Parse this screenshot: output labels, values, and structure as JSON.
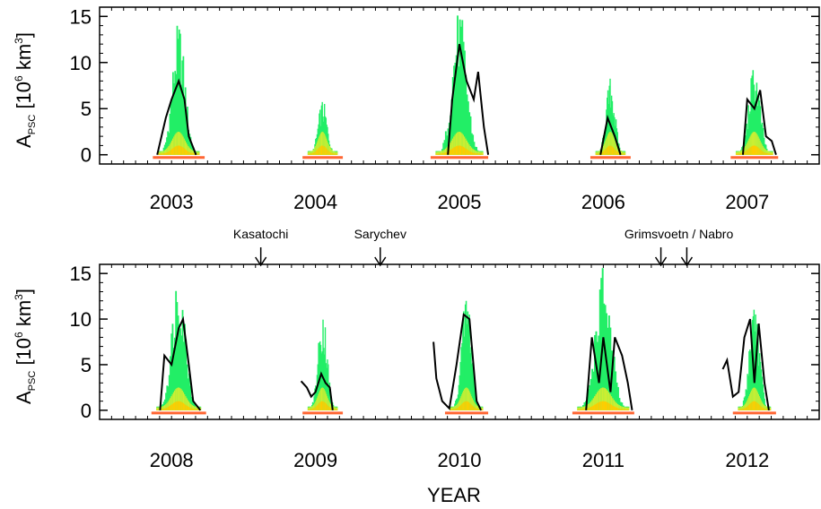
{
  "chart_data": [
    {
      "type": "area",
      "panel": "top",
      "ylabel_main": "A",
      "ylabel_sub": "PSC",
      "ylabel_units_pre": "[10",
      "ylabel_units_exp": "6",
      "ylabel_units_mid": " km",
      "ylabel_units_exp2": "3",
      "ylabel_units_post": "]",
      "ylim": [
        -1,
        16
      ],
      "yticks": [
        "0",
        "5",
        "10",
        "15"
      ],
      "ytick_values": [
        0,
        5,
        10,
        15
      ],
      "xlim": [
        2002.5,
        2007.5
      ],
      "xticks": [
        "2003",
        "2004",
        "2005",
        "2006",
        "2007"
      ],
      "xtick_values": [
        2003.0,
        2004.0,
        2005.0,
        2006.0,
        2007.0
      ],
      "colors": {
        "envelope": "#22ee66",
        "mid": "#ccee33",
        "low": "#ffcc00",
        "base": "#ff6633",
        "line": "#000000"
      },
      "seasons": [
        {
          "center": 2003.05,
          "width": 0.28,
          "envelope_peak": 14.5,
          "line": [
            [
              2002.9,
              0
            ],
            [
              2002.96,
              4
            ],
            [
              2003.0,
              6
            ],
            [
              2003.05,
              8
            ],
            [
              2003.09,
              6
            ],
            [
              2003.12,
              2
            ],
            [
              2003.17,
              0
            ]
          ]
        },
        {
          "center": 2004.05,
          "width": 0.2,
          "envelope_peak": 6.0,
          "line": []
        },
        {
          "center": 2005.0,
          "width": 0.32,
          "envelope_peak": 16.0,
          "line": [
            [
              2004.92,
              0
            ],
            [
              2004.95,
              6
            ],
            [
              2005.0,
              12
            ],
            [
              2005.05,
              8
            ],
            [
              2005.1,
              6
            ],
            [
              2005.13,
              9
            ],
            [
              2005.17,
              3
            ],
            [
              2005.2,
              0
            ]
          ]
        },
        {
          "center": 2006.05,
          "width": 0.2,
          "envelope_peak": 8.5,
          "line": [
            [
              2005.98,
              0
            ],
            [
              2006.03,
              4
            ],
            [
              2006.08,
              2
            ],
            [
              2006.12,
              0
            ]
          ]
        },
        {
          "center": 2007.05,
          "width": 0.25,
          "envelope_peak": 10.0,
          "line": [
            [
              2006.97,
              0
            ],
            [
              2007.0,
              6
            ],
            [
              2007.05,
              5
            ],
            [
              2007.09,
              7
            ],
            [
              2007.13,
              2
            ],
            [
              2007.17,
              1.5
            ],
            [
              2007.2,
              0
            ]
          ]
        }
      ]
    },
    {
      "type": "area",
      "panel": "bottom",
      "ylabel_main": "A",
      "ylabel_sub": "PSC",
      "ylabel_units_pre": "[10",
      "ylabel_units_exp": "6",
      "ylabel_units_mid": " km",
      "ylabel_units_exp2": "3",
      "ylabel_units_post": "]",
      "ylim": [
        -1,
        16
      ],
      "yticks": [
        "0",
        "5",
        "10",
        "15"
      ],
      "ytick_values": [
        0,
        5,
        10,
        15
      ],
      "xlim": [
        2007.5,
        2012.5
      ],
      "xticks": [
        "2008",
        "2009",
        "2010",
        "2011",
        "2012"
      ],
      "xtick_values": [
        2008.0,
        2009.0,
        2010.0,
        2011.0,
        2012.0
      ],
      "xlabel": "YEAR",
      "colors": {
        "envelope": "#22ee66",
        "mid": "#ccee33",
        "low": "#ffcc00",
        "base": "#ff6633",
        "line": "#000000"
      },
      "seasons": [
        {
          "center": 2008.05,
          "width": 0.3,
          "envelope_peak": 16.0,
          "line": [
            [
              2007.92,
              0
            ],
            [
              2007.95,
              6
            ],
            [
              2008.0,
              5
            ],
            [
              2008.05,
              9
            ],
            [
              2008.08,
              10
            ],
            [
              2008.12,
              5
            ],
            [
              2008.15,
              1
            ],
            [
              2008.2,
              0
            ]
          ]
        },
        {
          "center": 2009.05,
          "width": 0.2,
          "envelope_peak": 11.5,
          "line": [
            [
              2008.9,
              3.2
            ],
            [
              2008.94,
              2.5
            ],
            [
              2008.97,
              1.5
            ],
            [
              2009.0,
              2.0
            ],
            [
              2009.04,
              4.0
            ],
            [
              2009.07,
              3.0
            ],
            [
              2009.1,
              2.5
            ],
            [
              2009.12,
              0
            ]
          ]
        },
        {
          "center": 2010.05,
          "width": 0.22,
          "envelope_peak": 13.5,
          "line": [
            [
              2009.82,
              7.5
            ],
            [
              2009.84,
              3.5
            ],
            [
              2009.88,
              1.0
            ],
            [
              2009.93,
              0.2
            ],
            [
              2009.98,
              5
            ],
            [
              2010.03,
              10.5
            ],
            [
              2010.07,
              10.0
            ],
            [
              2010.12,
              1
            ],
            [
              2010.15,
              0
            ]
          ]
        },
        {
          "center": 2011.0,
          "width": 0.35,
          "envelope_peak": 16.0,
          "line": [
            [
              2010.88,
              0
            ],
            [
              2010.92,
              8
            ],
            [
              2010.97,
              3
            ],
            [
              2011.0,
              8
            ],
            [
              2011.05,
              2
            ],
            [
              2011.08,
              8
            ],
            [
              2011.13,
              6
            ],
            [
              2011.17,
              3
            ],
            [
              2011.2,
              0
            ]
          ]
        },
        {
          "center": 2012.05,
          "width": 0.22,
          "envelope_peak": 13.0,
          "line": [
            [
              2011.83,
              4.5
            ],
            [
              2011.86,
              5.5
            ],
            [
              2011.9,
              1.5
            ],
            [
              2011.94,
              2
            ],
            [
              2011.98,
              8
            ],
            [
              2012.02,
              10
            ],
            [
              2012.05,
              3
            ],
            [
              2012.08,
              9.5
            ],
            [
              2012.12,
              3
            ],
            [
              2012.15,
              0
            ]
          ]
        }
      ]
    }
  ],
  "annotations": [
    {
      "label": "Kasatochi",
      "year": 2008.62
    },
    {
      "label": "Sarychev",
      "year": 2009.45
    },
    {
      "label": "Grimsvoetn / Nabro",
      "year": 2011.4,
      "arrow_years": [
        2011.4,
        2011.58
      ]
    }
  ]
}
